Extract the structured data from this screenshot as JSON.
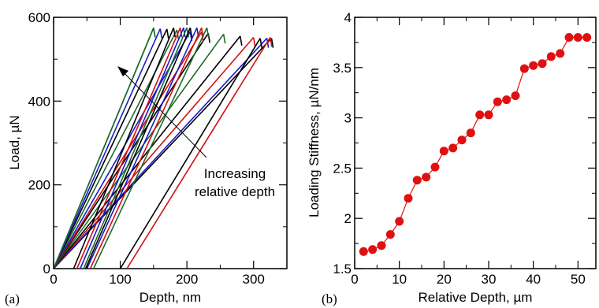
{
  "chart_data": [
    {
      "panel": "(a)",
      "type": "line",
      "xlabel": "Depth, nm",
      "ylabel": "Load, µN",
      "xlim": [
        0,
        350
      ],
      "ylim": [
        0,
        600
      ],
      "xticks": [
        "0",
        "100",
        "200",
        "300"
      ],
      "yticks": [
        "0",
        "200",
        "400",
        "600"
      ],
      "annotation": [
        "Increasing",
        "relative depth"
      ],
      "series_colors": [
        "#000000",
        "#d01010",
        "#1a1acc",
        "#1d6b2a"
      ],
      "series": [
        {
          "color": "#000000",
          "x": [
            0,
            327
          ],
          "y": [
            0,
            550
          ]
        },
        {
          "color": "#1a1acc",
          "x": [
            0,
            320
          ],
          "y": [
            0,
            550
          ]
        },
        {
          "color": "#d01010",
          "x": [
            0,
            300
          ],
          "y": [
            0,
            552
          ]
        },
        {
          "color": "#000000",
          "x": [
            0,
            280
          ],
          "y": [
            0,
            555
          ]
        },
        {
          "color": "#1d6b2a",
          "x": [
            0,
            255
          ],
          "y": [
            0,
            560
          ]
        },
        {
          "color": "#000000",
          "x": [
            0,
            232
          ],
          "y": [
            0,
            562
          ]
        },
        {
          "color": "#d01010",
          "x": [
            0,
            222
          ],
          "y": [
            0,
            565
          ]
        },
        {
          "color": "#1a1acc",
          "x": [
            0,
            205
          ],
          "y": [
            0,
            566
          ]
        },
        {
          "color": "#1d6b2a",
          "x": [
            0,
            185
          ],
          "y": [
            0,
            570
          ]
        },
        {
          "color": "#000000",
          "x": [
            0,
            170
          ],
          "y": [
            0,
            572
          ]
        },
        {
          "color": "#1a1acc",
          "x": [
            0,
            160
          ],
          "y": [
            0,
            573
          ]
        },
        {
          "color": "#1d6b2a",
          "x": [
            0,
            150
          ],
          "y": [
            0,
            575
          ]
        },
        {
          "color": "#000000",
          "x": [
            30,
            180
          ],
          "y": [
            0,
            575
          ]
        },
        {
          "color": "#d01010",
          "x": [
            35,
            190
          ],
          "y": [
            0,
            575
          ]
        },
        {
          "color": "#1a1acc",
          "x": [
            40,
            195
          ],
          "y": [
            0,
            575
          ]
        },
        {
          "color": "#1d6b2a",
          "x": [
            45,
            200
          ],
          "y": [
            0,
            575
          ]
        },
        {
          "color": "#000000",
          "x": [
            48,
            205
          ],
          "y": [
            0,
            575
          ]
        },
        {
          "color": "#1a1acc",
          "x": [
            50,
            215
          ],
          "y": [
            0,
            575
          ]
        },
        {
          "color": "#d01010",
          "x": [
            55,
            222
          ],
          "y": [
            0,
            575
          ]
        },
        {
          "color": "#1d6b2a",
          "x": [
            60,
            230
          ],
          "y": [
            0,
            575
          ]
        },
        {
          "color": "#000000",
          "x": [
            100,
            310
          ],
          "y": [
            0,
            550
          ]
        },
        {
          "color": "#d01010",
          "x": [
            110,
            325
          ],
          "y": [
            0,
            552
          ]
        },
        {
          "color": "#1d6b2a",
          "x": [
            0,
            150
          ],
          "y": [
            0,
            575
          ]
        }
      ]
    },
    {
      "panel": "(b)",
      "type": "line",
      "xlabel": "Relative Depth, µm",
      "ylabel": "Loading Stiffness, µN/nm",
      "xlim": [
        0,
        54
      ],
      "ylim": [
        1.5,
        4
      ],
      "xticks": [
        "0",
        "10",
        "20",
        "30",
        "40",
        "50"
      ],
      "yticks": [
        "1.5",
        "2",
        "2.5",
        "3",
        "3.5",
        "4"
      ],
      "marker_color": "#e01010",
      "x": [
        2,
        4,
        6,
        8,
        10,
        12,
        14,
        16,
        18,
        20,
        22,
        24,
        26,
        28,
        30,
        32,
        34,
        36,
        38,
        40,
        42,
        44,
        46,
        48,
        50,
        52
      ],
      "y": [
        1.67,
        1.69,
        1.73,
        1.84,
        1.97,
        2.2,
        2.38,
        2.41,
        2.51,
        2.67,
        2.7,
        2.78,
        2.85,
        3.03,
        3.03,
        3.16,
        3.18,
        3.22,
        3.49,
        3.52,
        3.54,
        3.61,
        3.64,
        3.8,
        3.8,
        3.8
      ]
    }
  ]
}
